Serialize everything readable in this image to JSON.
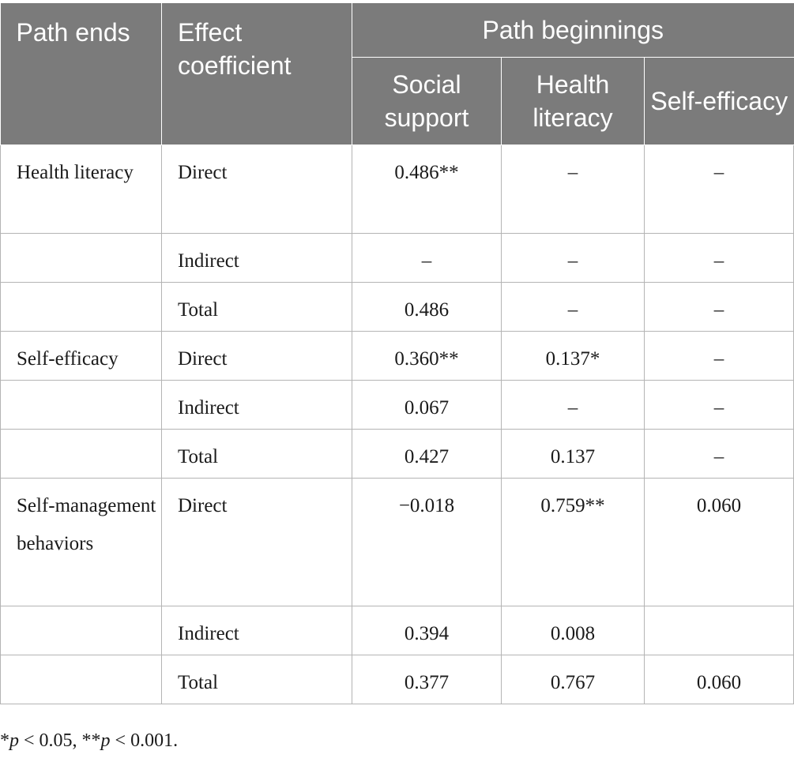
{
  "table": {
    "headers": {
      "path_ends": "Path ends",
      "effect_coefficient": "Effect coefficient",
      "path_beginnings": "Path beginnings",
      "social_support": "Social support",
      "health_literacy": "Health literacy",
      "self_efficacy": "Self-efficacy"
    },
    "rows": [
      [
        "Health literacy",
        "Direct",
        "0.486**",
        "–",
        "–"
      ],
      [
        "",
        "Indirect",
        "–",
        "–",
        "–"
      ],
      [
        "",
        "Total",
        "0.486",
        "–",
        "–"
      ],
      [
        "Self-efficacy",
        "Direct",
        "0.360**",
        "0.137*",
        "–"
      ],
      [
        "",
        "Indirect",
        "0.067",
        "–",
        "–"
      ],
      [
        "",
        "Total",
        "0.427",
        "0.137",
        "–"
      ],
      [
        "Self-management behaviors",
        "Direct",
        "−0.018",
        "0.759**",
        "0.060"
      ],
      [
        "",
        "Indirect",
        "0.394",
        "0.008",
        ""
      ],
      [
        "",
        "Total",
        "0.377",
        "0.767",
        "0.060"
      ]
    ]
  },
  "footnote": {
    "star1_prefix": "*",
    "p1": "p",
    "cond1": " < 0.05, ",
    "star2_prefix": "**",
    "p2": "p",
    "cond2": " < 0.001."
  }
}
